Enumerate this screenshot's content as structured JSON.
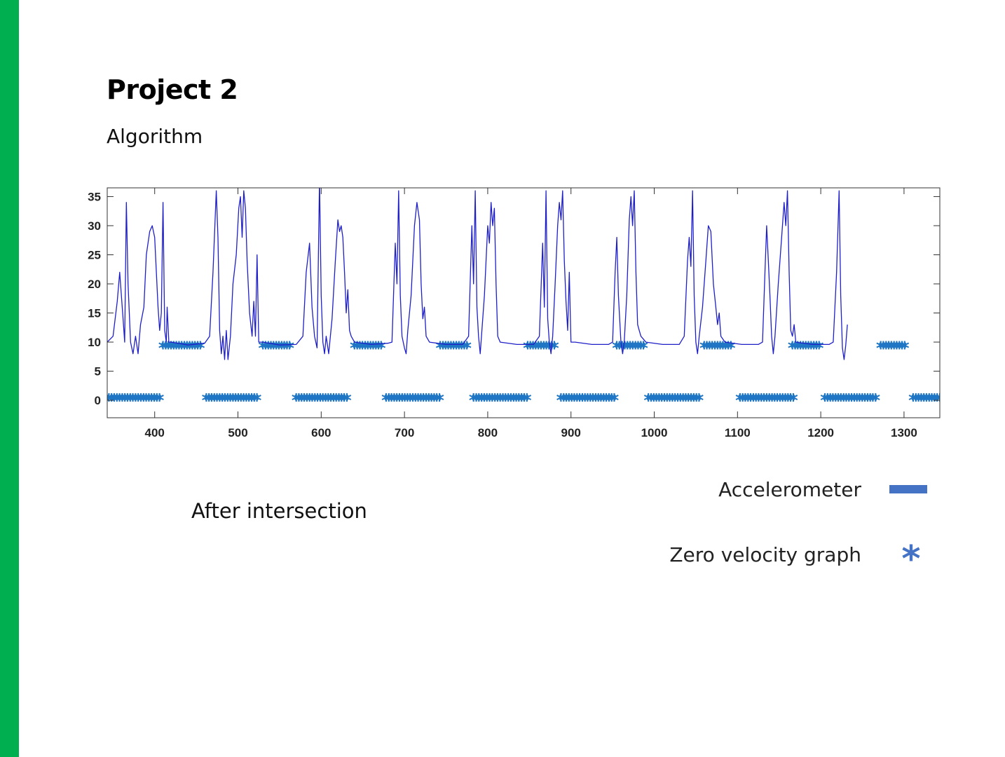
{
  "slide": {
    "title": "Project 2",
    "subtitle": "Algorithm",
    "caption": "After intersection",
    "accent_color": "#00b050"
  },
  "legend": {
    "items": [
      {
        "label": "Accelerometer",
        "symbol": "line",
        "color": "#4472c4"
      },
      {
        "label": "Zero velocity graph",
        "symbol": "*",
        "color": "#4472c4"
      }
    ]
  },
  "chart_data": {
    "type": "line",
    "xlim": [
      343,
      1343
    ],
    "ylim": [
      -3,
      36.5
    ],
    "xticks": [
      400,
      500,
      600,
      700,
      800,
      900,
      1000,
      1100,
      1200,
      1300
    ],
    "yticks": [
      0,
      5,
      10,
      15,
      20,
      25,
      30,
      35
    ],
    "grid": false,
    "series": [
      {
        "style": "line",
        "color": "#1f1fc8",
        "points": [
          [
            343,
            10
          ],
          [
            350,
            11
          ],
          [
            355,
            17
          ],
          [
            358,
            22
          ],
          [
            362,
            14
          ],
          [
            364,
            10
          ],
          [
            366,
            34
          ],
          [
            368,
            20
          ],
          [
            371,
            10
          ],
          [
            374,
            8
          ],
          [
            377,
            11
          ],
          [
            380,
            8
          ],
          [
            383,
            13
          ],
          [
            387,
            16
          ],
          [
            390,
            25
          ],
          [
            394,
            29
          ],
          [
            397,
            30
          ],
          [
            400,
            28
          ],
          [
            402,
            22
          ],
          [
            404,
            16
          ],
          [
            406,
            12
          ],
          [
            408,
            15
          ],
          [
            410,
            34
          ],
          [
            412,
            12
          ],
          [
            414,
            10
          ],
          [
            415,
            16
          ],
          [
            417,
            10
          ],
          [
            420,
            10
          ],
          [
            440,
            9.5
          ],
          [
            460,
            9.8
          ],
          [
            466,
            11
          ],
          [
            470,
            22
          ],
          [
            474,
            36
          ],
          [
            476,
            28
          ],
          [
            478,
            12
          ],
          [
            480,
            8
          ],
          [
            482,
            11
          ],
          [
            484,
            7
          ],
          [
            486,
            12
          ],
          [
            488,
            7
          ],
          [
            491,
            11
          ],
          [
            494,
            20
          ],
          [
            498,
            25
          ],
          [
            501,
            33
          ],
          [
            503,
            35
          ],
          [
            505,
            28
          ],
          [
            507,
            36
          ],
          [
            509,
            33
          ],
          [
            511,
            24
          ],
          [
            514,
            15
          ],
          [
            517,
            11
          ],
          [
            519,
            17
          ],
          [
            521,
            11
          ],
          [
            523,
            25
          ],
          [
            525,
            10
          ],
          [
            530,
            10
          ],
          [
            550,
            9.5
          ],
          [
            570,
            9.6
          ],
          [
            578,
            11
          ],
          [
            582,
            22
          ],
          [
            586,
            27
          ],
          [
            589,
            16
          ],
          [
            592,
            11
          ],
          [
            595,
            9
          ],
          [
            598,
            38
          ],
          [
            600,
            18
          ],
          [
            602,
            10
          ],
          [
            604,
            8
          ],
          [
            606,
            11
          ],
          [
            609,
            8
          ],
          [
            613,
            14
          ],
          [
            617,
            24
          ],
          [
            620,
            31
          ],
          [
            622,
            29
          ],
          [
            624,
            30
          ],
          [
            626,
            28
          ],
          [
            628,
            22
          ],
          [
            630,
            15
          ],
          [
            632,
            19
          ],
          [
            634,
            12
          ],
          [
            636,
            11
          ],
          [
            640,
            10
          ],
          [
            660,
            9.6
          ],
          [
            680,
            9.8
          ],
          [
            685,
            10
          ],
          [
            689,
            27
          ],
          [
            691,
            20
          ],
          [
            693,
            36
          ],
          [
            695,
            18
          ],
          [
            697,
            11
          ],
          [
            700,
            9
          ],
          [
            702,
            8
          ],
          [
            704,
            12
          ],
          [
            708,
            18
          ],
          [
            712,
            30
          ],
          [
            715,
            34
          ],
          [
            718,
            31
          ],
          [
            720,
            20
          ],
          [
            722,
            14
          ],
          [
            724,
            16
          ],
          [
            726,
            11
          ],
          [
            730,
            10
          ],
          [
            750,
            9.6
          ],
          [
            770,
            9.6
          ],
          [
            777,
            11
          ],
          [
            781,
            30
          ],
          [
            783,
            20
          ],
          [
            785,
            36
          ],
          [
            787,
            16
          ],
          [
            789,
            11
          ],
          [
            791,
            8
          ],
          [
            793,
            12
          ],
          [
            796,
            18
          ],
          [
            800,
            30
          ],
          [
            802,
            27
          ],
          [
            804,
            34
          ],
          [
            806,
            30
          ],
          [
            808,
            33
          ],
          [
            810,
            20
          ],
          [
            812,
            11
          ],
          [
            815,
            10
          ],
          [
            835,
            9.6
          ],
          [
            855,
            9.6
          ],
          [
            862,
            11
          ],
          [
            866,
            27
          ],
          [
            868,
            16
          ],
          [
            870,
            36
          ],
          [
            872,
            14
          ],
          [
            874,
            10
          ],
          [
            876,
            8
          ],
          [
            878,
            11
          ],
          [
            881,
            20
          ],
          [
            884,
            30
          ],
          [
            886,
            34
          ],
          [
            888,
            31
          ],
          [
            890,
            36
          ],
          [
            892,
            24
          ],
          [
            894,
            17
          ],
          [
            896,
            12
          ],
          [
            898,
            22
          ],
          [
            900,
            10
          ],
          [
            905,
            10
          ],
          [
            925,
            9.6
          ],
          [
            945,
            9.6
          ],
          [
            950,
            10
          ],
          [
            953,
            22
          ],
          [
            955,
            28
          ],
          [
            957,
            18
          ],
          [
            960,
            10
          ],
          [
            962,
            8
          ],
          [
            964,
            10
          ],
          [
            967,
            18
          ],
          [
            970,
            31
          ],
          [
            972,
            35
          ],
          [
            974,
            30
          ],
          [
            976,
            36
          ],
          [
            978,
            22
          ],
          [
            980,
            13
          ],
          [
            982,
            12
          ],
          [
            984,
            11
          ],
          [
            990,
            10
          ],
          [
            1010,
            9.6
          ],
          [
            1030,
            9.6
          ],
          [
            1036,
            11
          ],
          [
            1040,
            24
          ],
          [
            1042,
            28
          ],
          [
            1044,
            23
          ],
          [
            1046,
            36
          ],
          [
            1048,
            18
          ],
          [
            1050,
            10
          ],
          [
            1052,
            8
          ],
          [
            1054,
            11
          ],
          [
            1058,
            16
          ],
          [
            1062,
            24
          ],
          [
            1065,
            30
          ],
          [
            1068,
            29
          ],
          [
            1071,
            20
          ],
          [
            1074,
            16
          ],
          [
            1076,
            13
          ],
          [
            1078,
            15
          ],
          [
            1080,
            11
          ],
          [
            1085,
            10
          ],
          [
            1105,
            9.6
          ],
          [
            1125,
            9.6
          ],
          [
            1130,
            10
          ],
          [
            1133,
            22
          ],
          [
            1135,
            30
          ],
          [
            1137,
            24
          ],
          [
            1139,
            18
          ],
          [
            1141,
            11
          ],
          [
            1143,
            8
          ],
          [
            1145,
            11
          ],
          [
            1149,
            20
          ],
          [
            1153,
            28
          ],
          [
            1156,
            34
          ],
          [
            1158,
            30
          ],
          [
            1160,
            36
          ],
          [
            1162,
            22
          ],
          [
            1164,
            12
          ],
          [
            1166,
            11
          ],
          [
            1168,
            13
          ],
          [
            1170,
            10
          ],
          [
            1190,
            9.6
          ],
          [
            1210,
            9.6
          ],
          [
            1215,
            10
          ],
          [
            1219,
            22
          ],
          [
            1222,
            36
          ],
          [
            1224,
            18
          ],
          [
            1226,
            9
          ],
          [
            1228,
            7
          ],
          [
            1230,
            9.5
          ],
          [
            1232,
            13
          ]
        ]
      },
      {
        "style": "marker",
        "marker": "*",
        "color": "#1f76c4",
        "segments": [
          {
            "y": 9,
            "from": 410,
            "to": 457
          },
          {
            "y": 9,
            "from": 530,
            "to": 563
          },
          {
            "y": 9,
            "from": 640,
            "to": 672
          },
          {
            "y": 9,
            "from": 743,
            "to": 775
          },
          {
            "y": 9,
            "from": 848,
            "to": 883
          },
          {
            "y": 9,
            "from": 955,
            "to": 987
          },
          {
            "y": 9,
            "from": 1060,
            "to": 1095
          },
          {
            "y": 9,
            "from": 1166,
            "to": 1198
          },
          {
            "y": 9,
            "from": 1272,
            "to": 1303
          },
          {
            "y": 0,
            "from": 345,
            "to": 408
          },
          {
            "y": 0,
            "from": 462,
            "to": 525
          },
          {
            "y": 0,
            "from": 570,
            "to": 633
          },
          {
            "y": 0,
            "from": 678,
            "to": 742
          },
          {
            "y": 0,
            "from": 783,
            "to": 847
          },
          {
            "y": 0,
            "from": 888,
            "to": 952
          },
          {
            "y": 0,
            "from": 993,
            "to": 1055
          },
          {
            "y": 0,
            "from": 1103,
            "to": 1167
          },
          {
            "y": 0,
            "from": 1205,
            "to": 1268
          },
          {
            "y": 0,
            "from": 1311,
            "to": 1343
          }
        ]
      }
    ]
  }
}
